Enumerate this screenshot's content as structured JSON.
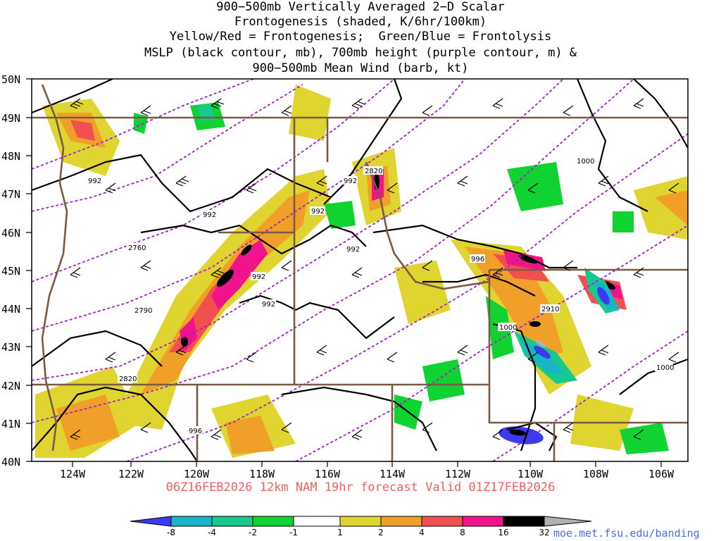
{
  "title": {
    "line1": "900−500mb Vertically Averaged 2−D Scalar",
    "line2": "Frontogenesis (shaded, K/6hr/100km)",
    "line3": "Yellow/Red = Frontogenesis;  Green/Blue = Frontolysis",
    "line4": "MSLP (black contour, mb), 700mb height (purple contour, m) &",
    "line5": "900−500mb Mean Wind (barb, kt)"
  },
  "subtitle": "06Z16FEB2026 12km NAM 19hr forecast Valid 01Z17FEB2026",
  "credit": "moe.met.fsu.edu/banding",
  "latitudes": [
    "50N",
    "49N",
    "48N",
    "47N",
    "46N",
    "45N",
    "44N",
    "43N",
    "42N",
    "41N",
    "40N"
  ],
  "longitudes": [
    "124W",
    "122W",
    "120W",
    "118W",
    "116W",
    "114W",
    "112W",
    "110W",
    "108W",
    "106W"
  ],
  "mslp_labels": [
    "992",
    "992",
    "992",
    "992",
    "992",
    "992",
    "992",
    "996",
    "996",
    "1000",
    "1000",
    "1000"
  ],
  "height_labels": [
    "2820",
    "2760",
    "2790",
    "2820",
    "2910"
  ],
  "colorbar": {
    "labels": [
      "-8",
      "-4",
      "-2",
      "-1",
      "1",
      "2",
      "4",
      "8",
      "16",
      "32"
    ],
    "colors": [
      "#3a3af0",
      "#18b4c8",
      "#18c88c",
      "#10d230",
      "#ffffff",
      "#e0d430",
      "#f0a028",
      "#f05050",
      "#f0148c",
      "#000000",
      "#b0b0b0"
    ]
  },
  "colors": {
    "mslp": "#000000",
    "height": "#a020c8",
    "border": "#7a5a44",
    "coast": "#7a5a44"
  }
}
